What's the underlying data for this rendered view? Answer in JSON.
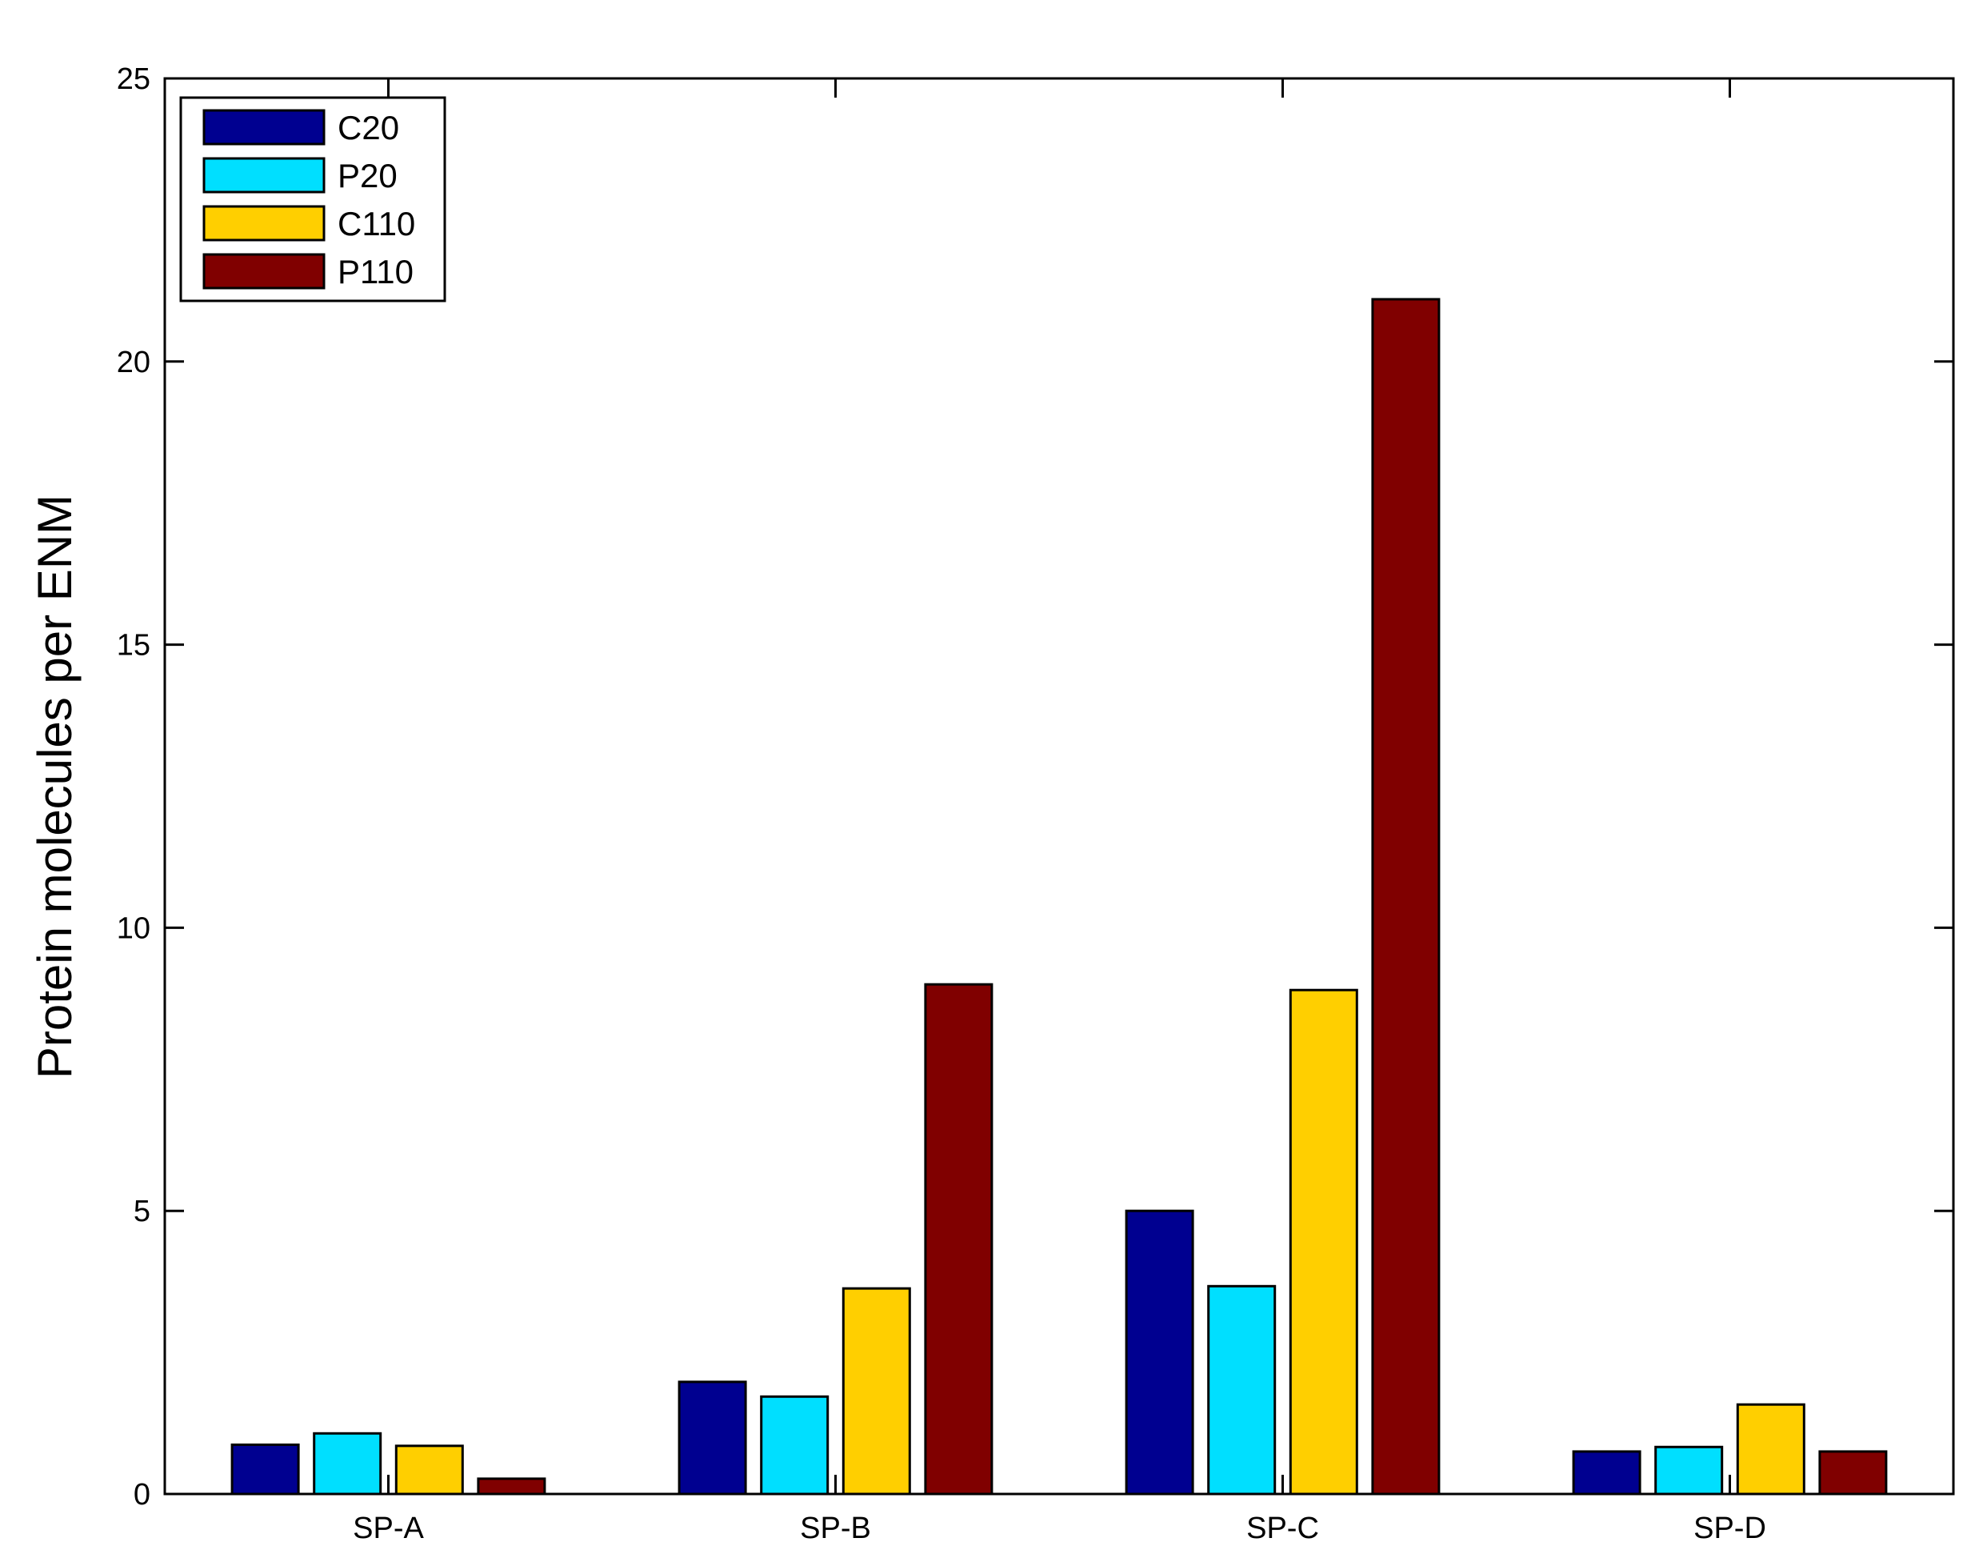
{
  "chart_data": {
    "type": "bar",
    "title": "",
    "xlabel": "",
    "ylabel": "Protein molecules per ENM",
    "ylim": [
      0,
      25
    ],
    "yticks": [
      "0",
      "5",
      "10",
      "15",
      "20",
      "25"
    ],
    "categories": [
      "SP-A",
      "SP-B",
      "SP-C",
      "SP-D"
    ],
    "series": [
      {
        "name": "C20",
        "color": "#000090",
        "values": [
          0.87,
          1.98,
          5.0,
          0.75
        ]
      },
      {
        "name": "P20",
        "color": "#00DFFF",
        "values": [
          1.07,
          1.72,
          3.67,
          0.83
        ]
      },
      {
        "name": "C110",
        "color": "#FFCF00",
        "values": [
          0.85,
          3.63,
          8.9,
          1.58
        ]
      },
      {
        "name": "P110",
        "color": "#800000",
        "values": [
          0.27,
          9.0,
          21.1,
          0.75
        ]
      }
    ],
    "grid": false,
    "legend_position": "top-left"
  }
}
